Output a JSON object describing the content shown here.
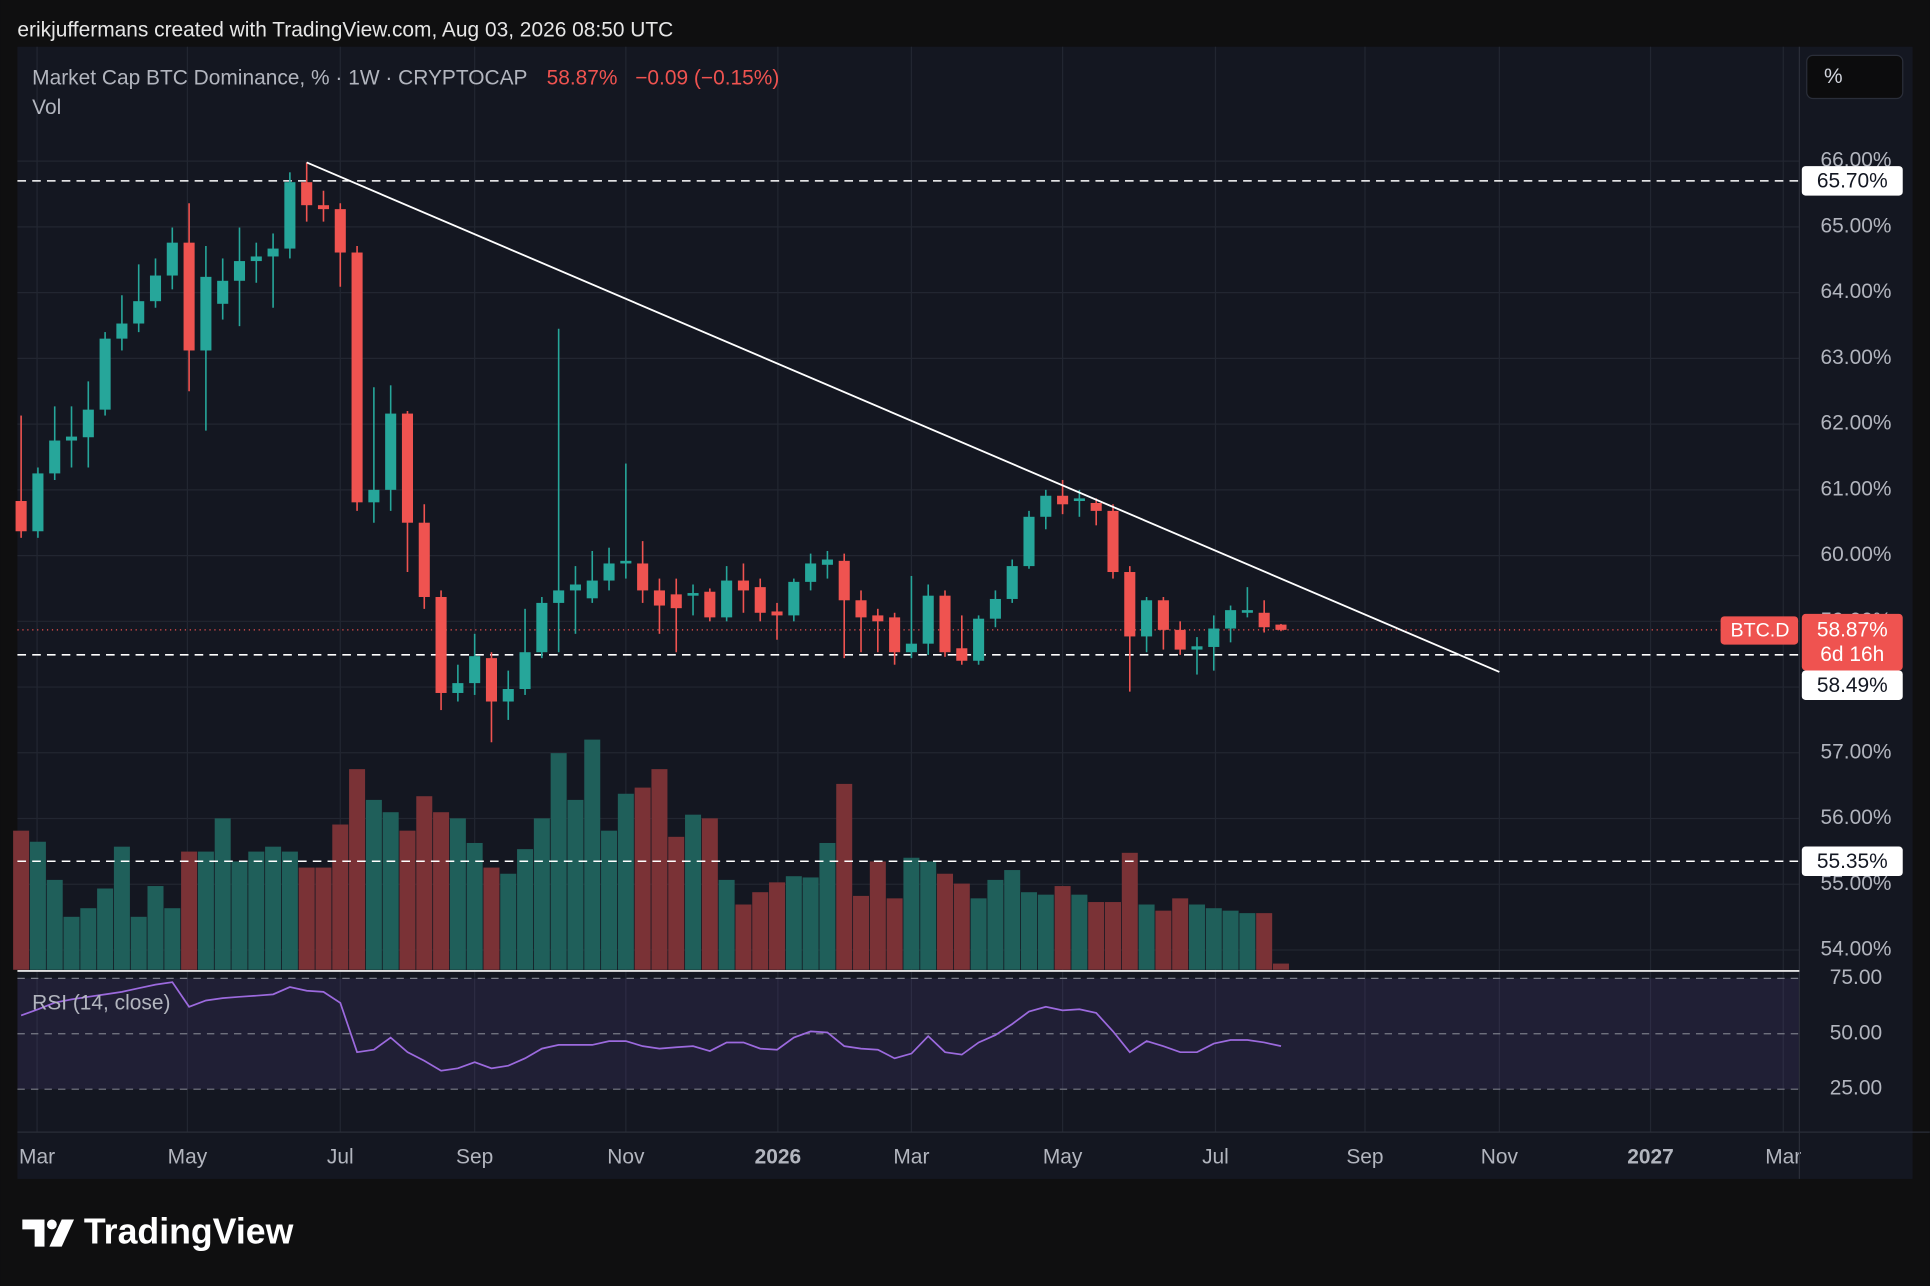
{
  "header": {
    "credit": "erikjuffermans created with TradingView.com, Aug 03, 2026 08:50 UTC",
    "unit_button": "%",
    "logo": "TradingView"
  },
  "chart_data": {
    "type": "candlestick",
    "title": "Market Cap BTC Dominance, % · 1W · CRYPTOCAP",
    "last_label": "58.87%",
    "change_label": "−0.09 (−0.15%)",
    "categories": [
      null,
      null,
      null,
      null,
      null,
      null,
      null,
      null,
      null,
      null,
      null,
      null,
      null,
      null,
      null,
      null,
      null,
      null,
      null,
      null,
      null,
      null,
      null,
      null,
      null,
      null,
      null,
      null,
      null,
      null,
      null,
      null,
      null,
      null,
      null,
      null,
      null,
      null,
      null,
      null,
      null,
      null,
      null,
      null,
      null,
      null,
      null,
      null,
      null,
      null,
      null,
      null,
      null,
      null,
      null,
      null,
      null,
      null,
      null,
      null,
      null,
      null,
      null,
      null,
      null,
      null,
      null,
      null,
      null,
      null,
      null,
      null,
      null,
      null,
      null,
      null
    ],
    "open": [
      60.83,
      60.37,
      61.25,
      61.75,
      61.8,
      62.22,
      63.3,
      63.53,
      63.87,
      64.26,
      64.76,
      63.12,
      63.83,
      64.18,
      64.48,
      64.55,
      64.67,
      65.68,
      65.33,
      65.27,
      64.61,
      60.81,
      61.0,
      62.16,
      60.5,
      59.37,
      57.91,
      58.06,
      58.44,
      57.78,
      57.97,
      58.53,
      59.28,
      59.47,
      59.35,
      59.62,
      59.88,
      59.88,
      59.47,
      59.41,
      59.39,
      59.45,
      59.06,
      59.62,
      59.52,
      59.15,
      59.09,
      59.6,
      59.86,
      59.92,
      59.32,
      59.09,
      59.06,
      58.53,
      58.66,
      59.39,
      58.59,
      58.4,
      59.04,
      59.34,
      59.84,
      60.59,
      60.91,
      60.83,
      60.8,
      60.68,
      59.75,
      58.77,
      59.32,
      58.87,
      58.57,
      58.61,
      58.89,
      59.13,
      59.13,
      58.95
    ],
    "high": [
      62.13,
      61.34,
      62.27,
      62.27,
      62.65,
      63.4,
      63.96,
      64.43,
      64.52,
      64.99,
      65.36,
      64.71,
      64.52,
      64.99,
      64.76,
      64.9,
      65.83,
      65.98,
      65.55,
      65.36,
      64.71,
      62.56,
      62.59,
      62.2,
      60.78,
      59.47,
      58.34,
      58.81,
      58.53,
      58.25,
      59.19,
      59.37,
      63.45,
      59.84,
      60.07,
      60.12,
      61.4,
      60.22,
      59.65,
      59.65,
      59.56,
      59.5,
      59.84,
      59.88,
      59.65,
      59.28,
      59.65,
      60.03,
      60.07,
      60.03,
      59.47,
      59.19,
      59.13,
      59.69,
      59.56,
      59.47,
      59.09,
      59.09,
      59.47,
      59.94,
      60.68,
      61.0,
      61.15,
      61.0,
      60.87,
      60.78,
      59.84,
      59.37,
      59.37,
      59.0,
      58.76,
      59.09,
      59.24,
      59.52,
      59.32,
      58.96
    ],
    "low": [
      60.27,
      60.27,
      61.15,
      61.34,
      61.34,
      62.13,
      63.12,
      63.4,
      63.77,
      64.05,
      62.5,
      61.9,
      63.59,
      63.49,
      64.15,
      63.77,
      64.52,
      65.08,
      65.08,
      64.09,
      60.68,
      60.5,
      60.68,
      59.75,
      59.19,
      57.65,
      57.78,
      57.88,
      57.16,
      57.5,
      57.88,
      58.44,
      58.53,
      58.81,
      59.28,
      59.47,
      59.65,
      59.28,
      58.81,
      58.53,
      59.09,
      59.0,
      59.0,
      59.13,
      59.0,
      58.72,
      59.0,
      59.47,
      59.65,
      58.44,
      58.53,
      58.53,
      58.34,
      58.44,
      58.49,
      58.46,
      58.34,
      58.34,
      58.91,
      59.28,
      59.8,
      60.4,
      60.63,
      60.59,
      60.46,
      59.65,
      57.93,
      58.53,
      58.57,
      58.49,
      58.19,
      58.25,
      58.68,
      59.06,
      58.83,
      58.85
    ],
    "close": [
      60.37,
      61.25,
      61.75,
      61.81,
      62.22,
      63.3,
      63.53,
      63.87,
      64.26,
      64.76,
      63.12,
      64.24,
      64.18,
      64.48,
      64.55,
      64.67,
      65.68,
      65.33,
      65.27,
      64.61,
      60.81,
      61.0,
      62.16,
      60.5,
      59.37,
      57.91,
      58.06,
      58.47,
      57.78,
      57.97,
      58.53,
      59.28,
      59.47,
      59.56,
      59.62,
      59.88,
      59.92,
      59.47,
      59.24,
      59.2,
      59.43,
      59.06,
      59.62,
      59.47,
      59.13,
      59.09,
      59.6,
      59.88,
      59.94,
      59.32,
      59.06,
      59.0,
      58.53,
      58.66,
      59.39,
      58.53,
      58.4,
      59.04,
      59.34,
      59.84,
      60.59,
      60.91,
      60.78,
      60.87,
      60.68,
      59.75,
      58.77,
      59.32,
      58.87,
      58.57,
      58.62,
      58.89,
      59.17,
      59.17,
      58.91,
      58.87
    ],
    "colors": {
      "up": "#26a69a",
      "down": "#ef5350",
      "volume_up": "#1f5f5a",
      "volume_down": "#7a3236",
      "trendline": "#ffffff",
      "levels": "#ffffff"
    },
    "xlim": [
      -0.22,
      105.86
    ],
    "xticks": [
      {
        "value": 0.95,
        "label": "Mar"
      },
      {
        "value": 9.9,
        "label": "May"
      },
      {
        "value": 19.0,
        "label": "Jul"
      },
      {
        "value": 27.0,
        "label": "Sep"
      },
      {
        "value": 36.0,
        "label": "Nov"
      },
      {
        "value": 45.05,
        "label": "2026"
      },
      {
        "value": 53.0,
        "label": "Mar"
      },
      {
        "value": 62.0,
        "label": "May"
      },
      {
        "value": 71.1,
        "label": "Jul"
      },
      {
        "value": 80.0,
        "label": "Sep"
      },
      {
        "value": 88.0,
        "label": "Nov"
      },
      {
        "value": 97.0,
        "label": "2027"
      },
      {
        "value": 104.9,
        "label": "Mar"
      }
    ],
    "ylim": [
      53.7,
      67.74
    ],
    "yticks": [
      {
        "value": 54,
        "label": "54.00%"
      },
      {
        "value": 55,
        "label": "55.00%"
      },
      {
        "value": 56,
        "label": "56.00%"
      },
      {
        "value": 57,
        "label": "57.00%"
      },
      {
        "value": 58,
        "label": "58.00%"
      },
      {
        "value": 59,
        "label": "59.00%"
      },
      {
        "value": 60,
        "label": "60.00%"
      },
      {
        "value": 61,
        "label": "61.00%"
      },
      {
        "value": 62,
        "label": "62.00%"
      },
      {
        "value": 63,
        "label": "63.00%"
      },
      {
        "value": 64,
        "label": "64.00%"
      },
      {
        "value": 65,
        "label": "65.00%"
      },
      {
        "value": 66,
        "label": "66.00%"
      }
    ],
    "grid": true,
    "levels": [
      {
        "value": 65.7,
        "label": "65.70%"
      },
      {
        "value": 58.49,
        "label": "58.49%"
      },
      {
        "value": 55.35,
        "label": "55.35%"
      }
    ],
    "last": {
      "value": 58.87,
      "label": "58.87%",
      "symbol": "BTC.D",
      "countdown": "6d 16h"
    },
    "trendline": {
      "x": [
        17,
        88
      ],
      "y": [
        65.98,
        58.23
      ]
    },
    "volume": {
      "name": "Vol",
      "ylim": [
        0,
        250
      ],
      "values": [
        113,
        104,
        73,
        43,
        50,
        66,
        100,
        43,
        68,
        50,
        96,
        96,
        123,
        88,
        96,
        100,
        96,
        83,
        83,
        118,
        163,
        138,
        128,
        113,
        141,
        128,
        123,
        103,
        83,
        78,
        98,
        123,
        176,
        138,
        187,
        113,
        143,
        148,
        163,
        108,
        126,
        123,
        73,
        53,
        63,
        71,
        76,
        75,
        103,
        151,
        60,
        88,
        58,
        91,
        88,
        78,
        70,
        58,
        73,
        81,
        63,
        61,
        68,
        61,
        55,
        55,
        95,
        53,
        48,
        58,
        53,
        50,
        48,
        46,
        46,
        5
      ]
    },
    "rsi": {
      "name": "RSI (14, close)",
      "color": "#9c6ade",
      "ylim": [
        5.6,
        77.8
      ],
      "band": [
        25,
        75
      ],
      "yticks": [
        {
          "value": 25,
          "label": "25.00"
        },
        {
          "value": 50,
          "label": "50.00"
        },
        {
          "value": 75,
          "label": "75.00"
        }
      ],
      "values": [
        58.3,
        61,
        64,
        65.5,
        66.7,
        67.8,
        68.9,
        70.6,
        72.2,
        73.3,
        62.2,
        65,
        66.1,
        66.7,
        67.2,
        67.8,
        71.1,
        69.4,
        68.9,
        63.9,
        41.7,
        42.8,
        48.3,
        41.7,
        37.8,
        33.3,
        34.4,
        37.2,
        34.4,
        35.6,
        38.9,
        43.3,
        45,
        45,
        45,
        46.7,
        46.7,
        44.4,
        43.3,
        43.9,
        44.4,
        42.2,
        46.1,
        46.1,
        43.3,
        42.8,
        48.3,
        51.1,
        50.6,
        44.4,
        43.3,
        42.8,
        38.9,
        41.1,
        48.9,
        41.7,
        40.6,
        46.1,
        49.4,
        54.4,
        60,
        62.2,
        60.6,
        61.1,
        59.4,
        51.1,
        41.7,
        46.7,
        44.4,
        41.7,
        41.7,
        45.6,
        47.2,
        47.2,
        46.1,
        44.4
      ]
    }
  }
}
